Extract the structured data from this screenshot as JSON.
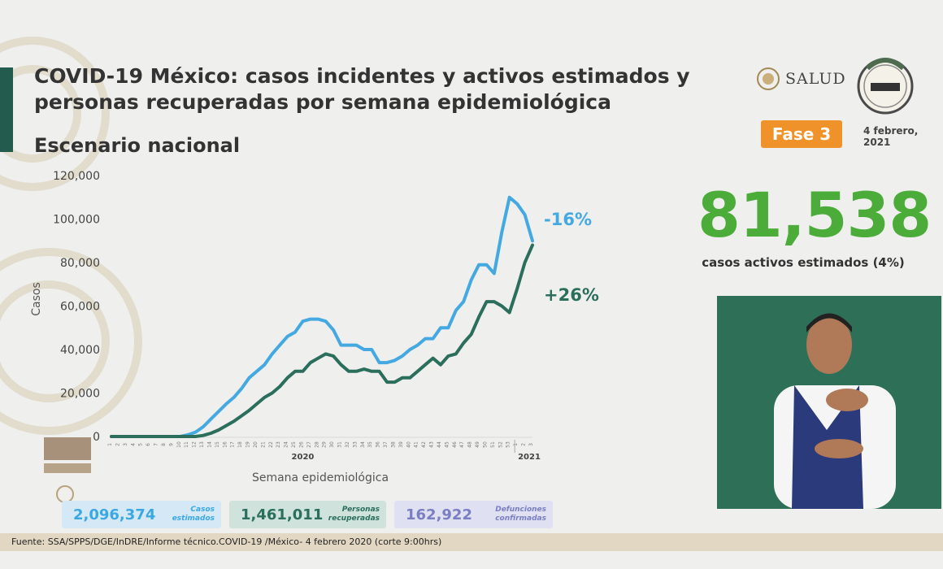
{
  "header": {
    "title": "COVID-19 México: casos incidentes y activos estimados y personas recuperadas por semana epidemiológica",
    "subtitle": "Escenario nacional",
    "logo_text": "SALUD",
    "phase_badge": "Fase 3",
    "date": "4 febrero,\n2021"
  },
  "highlight": {
    "value": "81,538",
    "caption": "casos activos estimados (4%)"
  },
  "summary": [
    {
      "value": "2,096,374",
      "label": "Casos\nestimados"
    },
    {
      "value": "1,461,011",
      "label": "Personas\nrecuperadas"
    },
    {
      "value": "162,922",
      "label": "Defunciones\nconfirmadas"
    }
  ],
  "source": "Fuente: SSA/SPPS/DGE/InDRE/Informe técnico.COVID-19 /México- 4 febrero 2020 (corte 9:00hrs)",
  "colors": {
    "estimated": "#45a9e1",
    "active": "#2b6e5c",
    "highlight": "#4bac3a",
    "phase": "#f0922a"
  },
  "chart_data": {
    "type": "line",
    "ylabel": "Casos",
    "xlabel": "Semana epidemiológica",
    "ylim": [
      0,
      120000
    ],
    "yticks": [
      "120,000",
      "100,000",
      "80,000",
      "60,000",
      "40,000",
      "20,000",
      "0"
    ],
    "ytick_values": [
      120000,
      100000,
      80000,
      60000,
      40000,
      20000,
      0
    ],
    "x": [
      "1",
      "2",
      "3",
      "4",
      "5",
      "6",
      "7",
      "8",
      "9",
      "10",
      "11",
      "12",
      "13",
      "14",
      "15",
      "16",
      "17",
      "18",
      "19",
      "20",
      "21",
      "22",
      "23",
      "24",
      "25",
      "26",
      "27",
      "28",
      "29",
      "30",
      "31",
      "32",
      "33",
      "34",
      "35",
      "36",
      "37",
      "38",
      "39",
      "40",
      "41",
      "42",
      "43",
      "44",
      "45",
      "46",
      "47",
      "48",
      "49",
      "50",
      "51",
      "52",
      "53",
      "1",
      "2",
      "3"
    ],
    "year_labels": [
      "2020",
      "2021"
    ],
    "series": [
      {
        "values": [
          0,
          0,
          0,
          0,
          0,
          0,
          0,
          0,
          0,
          0,
          800,
          2000,
          4500,
          8000,
          11500,
          15000,
          18000,
          22000,
          27000,
          30000,
          33000,
          38000,
          42000,
          46000,
          48000,
          53000,
          54000,
          54000,
          53000,
          49000,
          42000,
          42000,
          42000,
          40000,
          40000,
          34000,
          34000,
          35000,
          37000,
          40000,
          42000,
          45000,
          45000,
          50000,
          50000,
          58000,
          62000,
          72000,
          79000,
          79000,
          75000,
          94000,
          110000,
          107000,
          102000,
          90000
        ],
        "end_label": "-16%"
      },
      {
        "values": [
          0,
          0,
          0,
          0,
          0,
          0,
          0,
          0,
          0,
          0,
          0,
          0,
          500,
          1500,
          3000,
          5000,
          7000,
          9500,
          12000,
          15000,
          18000,
          20000,
          23000,
          27000,
          30000,
          30000,
          34000,
          36000,
          38000,
          37000,
          33000,
          30000,
          30000,
          31000,
          30000,
          30000,
          25000,
          25000,
          27000,
          27000,
          30000,
          33000,
          36000,
          33000,
          37000,
          38000,
          43000,
          47000,
          55000,
          62000,
          62000,
          60000,
          57000,
          68000,
          80000,
          88000
        ],
        "end_label": "+26%"
      }
    ],
    "grid": false
  }
}
